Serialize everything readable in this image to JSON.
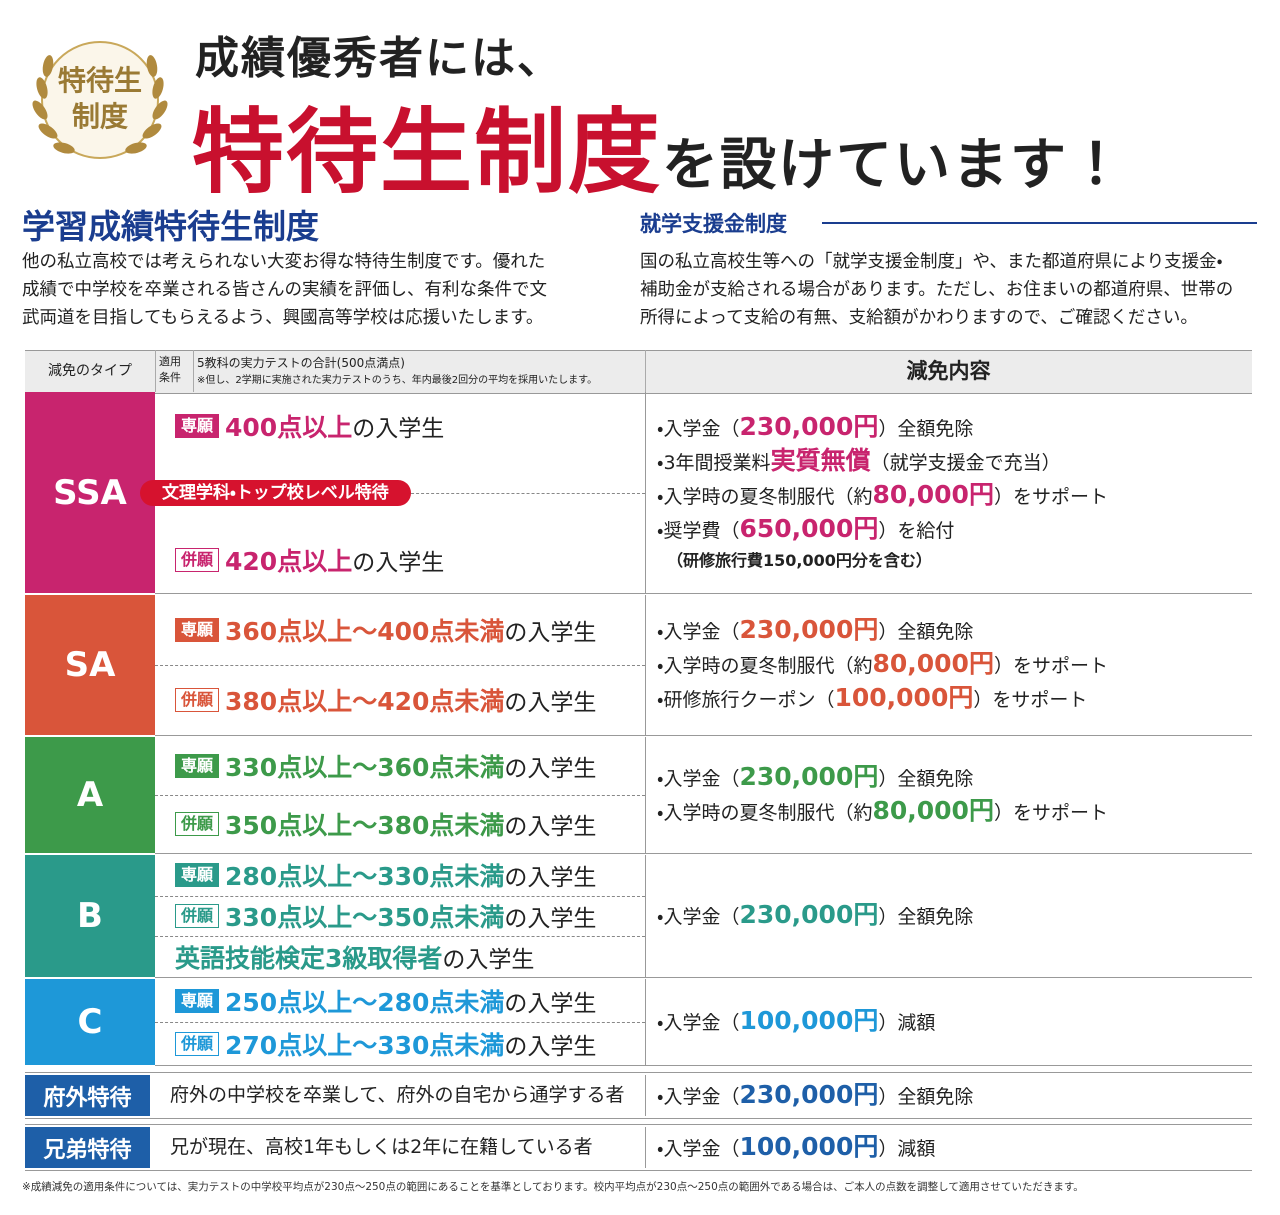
{
  "header": {
    "badge": [
      "特待生",
      "制度"
    ],
    "line1": "成績優秀者には、",
    "big": "特待生制度",
    "rest": "を設けています！"
  },
  "left": {
    "title": "学習成績特待生制度",
    "lines": [
      "他の私立高校では考えられない大変お得な特待生制度です。優れた",
      "成績で中学校を卒業される皆さんの実績を評価し、有利な条件で文",
      "武両道を目指してもらえるよう、興國高等学校は応援いたします。"
    ]
  },
  "right": {
    "title": "就学支援金制度",
    "lines": [
      "国の私立高校生等への「就学支援金制度」や、また都道府県により支援金・",
      "補助金が支給される場合があります。ただし、お住まいの都道府県、世帯の",
      "所得によって支給の有無、支給額がかわりますので、ご確認ください。"
    ]
  },
  "table": {
    "head": {
      "type": "減免のタイプ",
      "cond_label": [
        "適用",
        "条件"
      ],
      "cond_main": "5教科の実力テストの合計(500点満点)",
      "cond_note": "※但し、2学期に実施された実力テストのうち、年内最後2回分の平均を採用いたします。",
      "benefit": "減免内容"
    },
    "rows": [
      {
        "type": "SSA",
        "color": "#c8246e",
        "special": "文理学科・トップ校レベル特待",
        "conditions": [
          {
            "tag": "専願",
            "tag_style": "filled",
            "parts": [
              {
                "t": "400点以上",
                "em": true
              },
              {
                "t": "の入学生"
              }
            ]
          },
          {
            "tag": "併願",
            "tag_style": "outline",
            "parts": [
              {
                "t": "420点以上",
                "em": true
              },
              {
                "t": "の入学生"
              }
            ]
          }
        ],
        "benefits": [
          [
            {
              "t": "・入学金（"
            },
            {
              "t": "230,000円",
              "em": true
            },
            {
              "t": "）全額免除"
            }
          ],
          [
            {
              "t": "・3年間授業料"
            },
            {
              "t": "実質無償",
              "em": true
            },
            {
              "t": "（就学支援金で充当）"
            }
          ],
          [
            {
              "t": "・入学時の夏冬制服代（約"
            },
            {
              "t": "80,000円",
              "em": true
            },
            {
              "t": "）をサポート"
            }
          ],
          [
            {
              "t": "・奨学費（"
            },
            {
              "t": "650,000円",
              "em": true
            },
            {
              "t": "）を給付"
            }
          ],
          [
            {
              "t": "（研修旅行費150,000円分を含む）",
              "small": true
            }
          ]
        ]
      },
      {
        "type": "SA",
        "color": "#d9553a",
        "conditions": [
          {
            "tag": "専願",
            "tag_style": "filled",
            "parts": [
              {
                "t": "360点以上～400点未満",
                "em": true
              },
              {
                "t": "の入学生"
              }
            ]
          },
          {
            "tag": "併願",
            "tag_style": "outline",
            "parts": [
              {
                "t": "380点以上～420点未満",
                "em": true
              },
              {
                "t": "の入学生"
              }
            ]
          }
        ],
        "benefits": [
          [
            {
              "t": "・入学金（"
            },
            {
              "t": "230,000円",
              "em": true
            },
            {
              "t": "）全額免除"
            }
          ],
          [
            {
              "t": "・入学時の夏冬制服代（約"
            },
            {
              "t": "80,000円",
              "em": true
            },
            {
              "t": "）をサポート"
            }
          ],
          [
            {
              "t": "・研修旅行クーポン（"
            },
            {
              "t": "100,000円",
              "em": true
            },
            {
              "t": "）をサポート"
            }
          ]
        ]
      },
      {
        "type": "A",
        "color": "#3d9a4a",
        "conditions": [
          {
            "tag": "専願",
            "tag_style": "filled",
            "parts": [
              {
                "t": "330点以上～360点未満",
                "em": true
              },
              {
                "t": "の入学生"
              }
            ]
          },
          {
            "tag": "併願",
            "tag_style": "outline",
            "parts": [
              {
                "t": "350点以上～380点未満",
                "em": true
              },
              {
                "t": "の入学生"
              }
            ]
          }
        ],
        "benefits": [
          [
            {
              "t": "・入学金（"
            },
            {
              "t": "230,000円",
              "em": true
            },
            {
              "t": "）全額免除"
            }
          ],
          [
            {
              "t": "・入学時の夏冬制服代（約"
            },
            {
              "t": "80,000円",
              "em": true
            },
            {
              "t": "）をサポート"
            }
          ]
        ]
      },
      {
        "type": "B",
        "color": "#2a9a8a",
        "conditions": [
          {
            "tag": "専願",
            "tag_style": "filled",
            "parts": [
              {
                "t": "280点以上～330点未満",
                "em": true
              },
              {
                "t": "の入学生"
              }
            ]
          },
          {
            "tag": "併願",
            "tag_style": "outline",
            "parts": [
              {
                "t": "330点以上～350点未満",
                "em": true
              },
              {
                "t": "の入学生"
              }
            ]
          },
          {
            "parts": [
              {
                "t": "英語技能検定3級取得者",
                "em": true
              },
              {
                "t": "の入学生"
              }
            ]
          }
        ],
        "benefits": [
          [
            {
              "t": "・入学金（"
            },
            {
              "t": "230,000円",
              "em": true
            },
            {
              "t": "）全額免除"
            }
          ]
        ]
      },
      {
        "type": "C",
        "color": "#1e98d8",
        "conditions": [
          {
            "tag": "専願",
            "tag_style": "filled",
            "parts": [
              {
                "t": "250点以上～280点未満",
                "em": true
              },
              {
                "t": "の入学生"
              }
            ]
          },
          {
            "tag": "併願",
            "tag_style": "outline",
            "parts": [
              {
                "t": "270点以上～330点未満",
                "em": true
              },
              {
                "t": "の入学生"
              }
            ]
          }
        ],
        "benefits": [
          [
            {
              "t": "・入学金（"
            },
            {
              "t": "100,000円",
              "em": true
            },
            {
              "t": "）減額"
            }
          ]
        ]
      }
    ],
    "special_rows": [
      {
        "type": "府外特待",
        "color": "#1e5fa8",
        "condition": "府外の中学校を卒業して、府外の自宅から通学する者",
        "benefits": [
          [
            {
              "t": "・入学金（"
            },
            {
              "t": "230,000円",
              "em": true
            },
            {
              "t": "）全額免除"
            }
          ]
        ]
      },
      {
        "type": "兄弟特待",
        "color": "#1e5fa8",
        "condition": "兄が現在、高校1年もしくは2年に在籍している者",
        "benefits": [
          [
            {
              "t": "・入学金（"
            },
            {
              "t": "100,000円",
              "em": true
            },
            {
              "t": "）減額"
            }
          ]
        ]
      }
    ],
    "footnote": "※成績減免の適用条件については、実力テストの中学校平均点が230点～250点の範囲にあることを基準としております。校内平均点が230点～250点の範囲外である場合は、ご本人の点数を調整して適用させていただきます。"
  }
}
